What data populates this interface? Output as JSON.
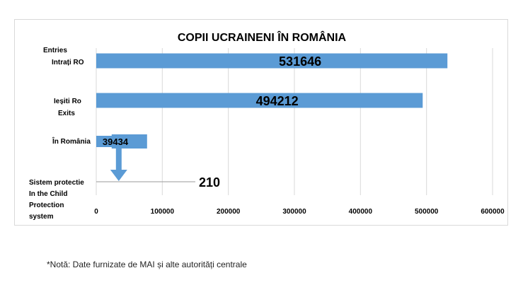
{
  "chart_data": {
    "type": "bar",
    "orientation": "horizontal",
    "title": "COPII UCRAINENI ÎN ROMÂNIA",
    "categories": [
      [
        "Entries",
        "Intrați RO"
      ],
      [
        "Ieșiti Ro",
        "Exits"
      ],
      [
        "În România"
      ],
      [
        "Sistem protectie",
        "In the Child",
        "Protection",
        "system"
      ]
    ],
    "values": [
      531646,
      494212,
      39434,
      210
    ],
    "value_labels": [
      "531646",
      "494212",
      "39434",
      "210"
    ],
    "xlim": [
      0,
      600000
    ],
    "xticks": [
      0,
      100000,
      200000,
      300000,
      400000,
      500000,
      600000
    ],
    "xtick_labels": [
      "0",
      "100000",
      "200000",
      "300000",
      "400000",
      "500000",
      "600000"
    ],
    "grid": "vertical",
    "bar_color": "#5b9bd5",
    "annotation": "arrow from În România bar down to Sistem protectie row"
  },
  "note": "*Notă: Date furnizate de MAI și alte autorități centrale"
}
